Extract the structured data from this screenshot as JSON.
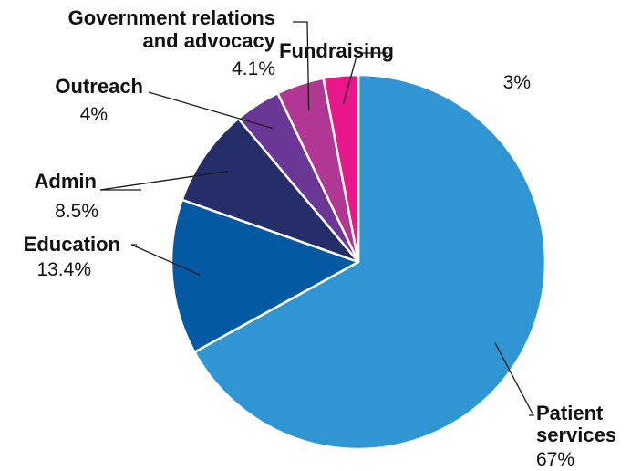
{
  "chart_data": {
    "type": "pie",
    "start_angle_deg": 0,
    "direction": "clockwise",
    "slices": [
      {
        "name": "Patient services",
        "lines": [
          "Patient",
          "services"
        ],
        "value": 67,
        "value_label": "67%",
        "color": "#2f96d3"
      },
      {
        "name": "Education",
        "lines": [
          "Education"
        ],
        "value": 13.4,
        "value_label": "13.4%",
        "color": "#035aa3"
      },
      {
        "name": "Admin",
        "lines": [
          "Admin"
        ],
        "value": 8.5,
        "value_label": "8.5%",
        "color": "#262e6a"
      },
      {
        "name": "Outreach",
        "lines": [
          "Outreach"
        ],
        "value": 4,
        "value_label": "4%",
        "color": "#6a3796"
      },
      {
        "name": "Government relations and advocacy",
        "lines": [
          "Government relations",
          "and advocacy"
        ],
        "value": 4.1,
        "value_label": "4.1%",
        "color": "#b13793"
      },
      {
        "name": "Fundraising",
        "lines": [
          "Fundraising"
        ],
        "value": 3,
        "value_label": "3%",
        "color": "#e8188c"
      }
    ]
  }
}
